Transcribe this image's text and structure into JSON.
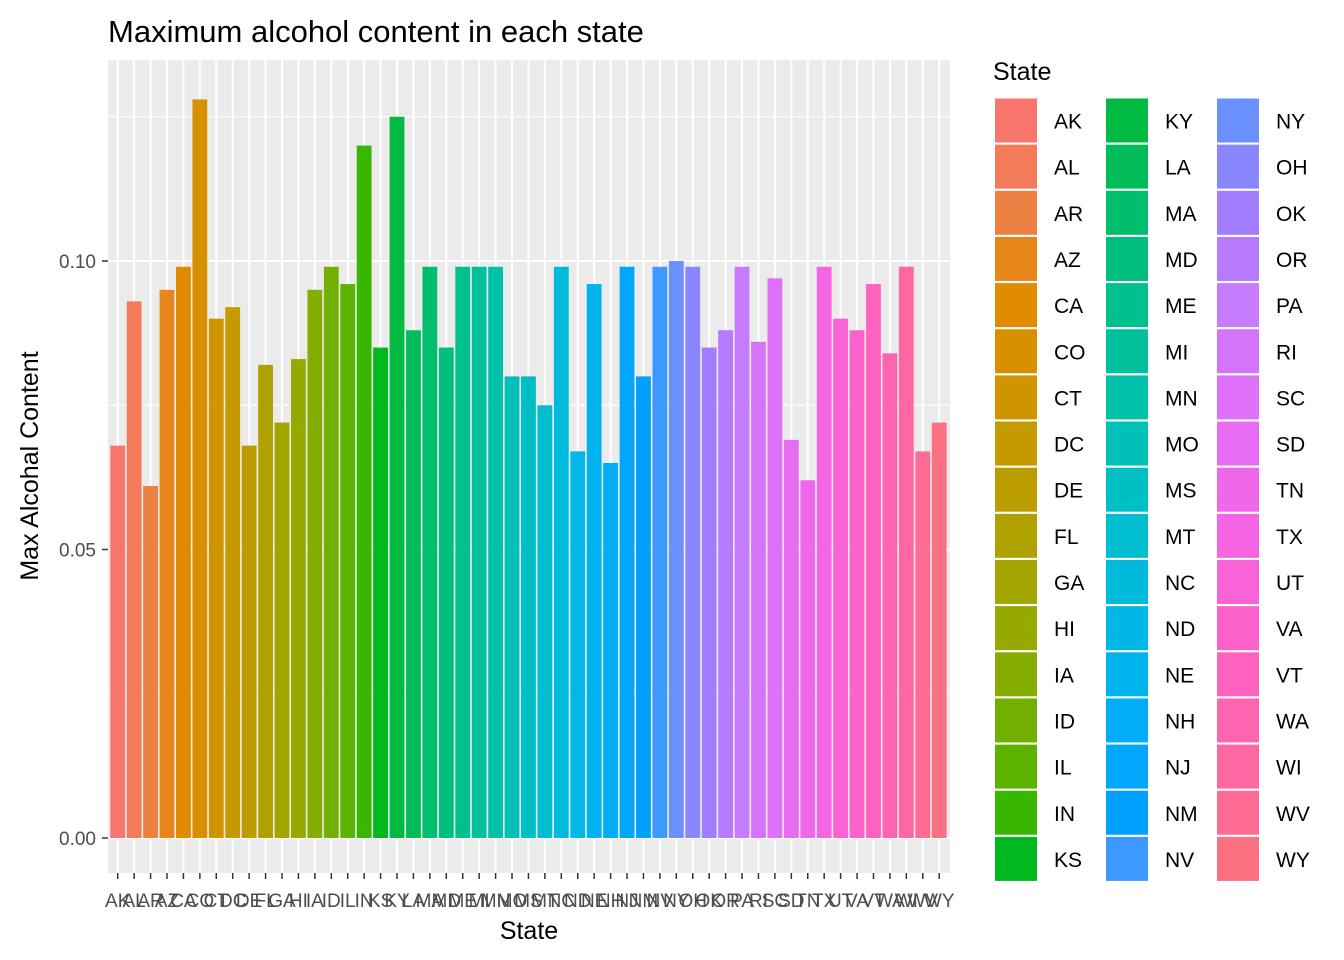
{
  "chart_data": {
    "type": "bar",
    "title": "Maximum alcohol content in each state",
    "xlabel": "State",
    "ylabel": "Max Alcohal Content",
    "ylim": [
      0,
      0.1295
    ],
    "yticks": [
      0.0,
      0.05,
      0.1
    ],
    "ytick_labels": [
      "0.00",
      "0.05",
      "0.10"
    ],
    "grid": true,
    "legend": {
      "title": "State",
      "placement": "right",
      "columns": 3
    },
    "categories": [
      "AK",
      "AL",
      "AR",
      "AZ",
      "CA",
      "CO",
      "CT",
      "DC",
      "DE",
      "FL",
      "GA",
      "HI",
      "IA",
      "ID",
      "IL",
      "IN",
      "KS",
      "KY",
      "LA",
      "MA",
      "MD",
      "ME",
      "MI",
      "MN",
      "MO",
      "MS",
      "MT",
      "NC",
      "ND",
      "NE",
      "NH",
      "NJ",
      "NM",
      "NV",
      "NY",
      "OH",
      "OK",
      "OR",
      "PA",
      "RI",
      "SC",
      "SD",
      "TN",
      "TX",
      "UT",
      "VA",
      "VT",
      "WA",
      "WI",
      "WV",
      "WY"
    ],
    "values": [
      0.068,
      0.093,
      0.061,
      0.095,
      0.099,
      0.128,
      0.09,
      0.092,
      0.068,
      0.082,
      0.072,
      0.083,
      0.095,
      0.099,
      0.096,
      0.12,
      0.085,
      0.125,
      0.088,
      0.099,
      0.085,
      0.099,
      0.099,
      0.099,
      0.08,
      0.08,
      0.075,
      0.099,
      0.067,
      0.096,
      0.065,
      0.099,
      0.08,
      0.099,
      0.1,
      0.099,
      0.085,
      0.088,
      0.099,
      0.086,
      0.097,
      0.069,
      0.062,
      0.099,
      0.09,
      0.088,
      0.096,
      0.084,
      0.099,
      0.067,
      0.072
    ],
    "colors": [
      "#F8766D",
      "#F37B59",
      "#ED8141",
      "#E7861B",
      "#E08B00",
      "#D89000",
      "#CF9400",
      "#C59900",
      "#BB9D00",
      "#AFA100",
      "#A3A500",
      "#95A900",
      "#85AD00",
      "#72B000",
      "#5BB300",
      "#39B600",
      "#00B81F",
      "#00BA42",
      "#00BC59",
      "#00BE6C",
      "#00BF7D",
      "#00C08D",
      "#00C19C",
      "#00C1AA",
      "#00C0B8",
      "#00BFC4",
      "#00BDD0",
      "#00BADB",
      "#00B7E5",
      "#00B2EE",
      "#00ADF6",
      "#00A7FD",
      "#00A0FF",
      "#3D98FF",
      "#6A90FF",
      "#8A86FF",
      "#A37DFF",
      "#B77AFF",
      "#C77CFF",
      "#D474FA",
      "#DF70F8",
      "#E76BF3",
      "#EF67EB",
      "#F564E3",
      "#FA62D8",
      "#FD61CC",
      "#FF62BE",
      "#FF64B0",
      "#FF67A2",
      "#FF6B93",
      "#FC7181"
    ]
  }
}
